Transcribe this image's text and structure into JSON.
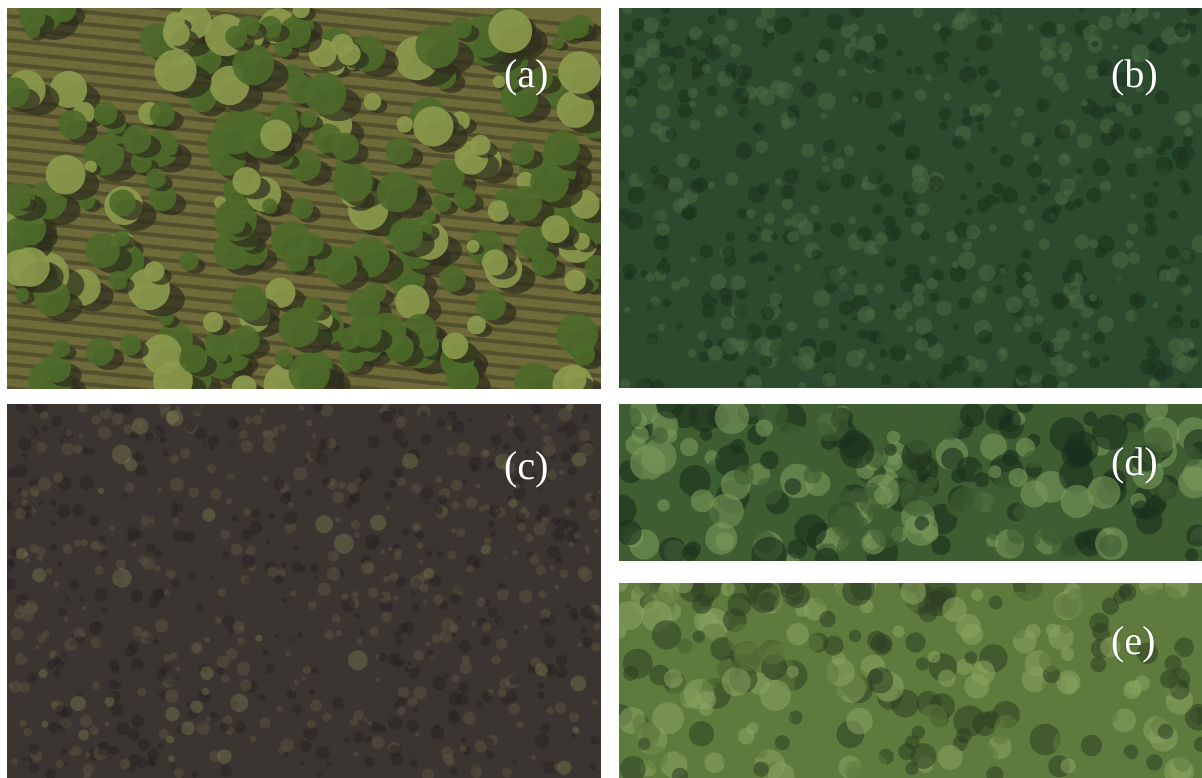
{
  "figure": {
    "panels": [
      {
        "id": "a",
        "label": "(a)",
        "scene": "sparse-tree-rows",
        "colors": {
          "ground": "#6e6a3a",
          "shadow": "#2e2e1c",
          "canopy": "#4e6a2a",
          "highlight": "#8c9a4c"
        }
      },
      {
        "id": "b",
        "label": "(b)",
        "scene": "dense-dark-canopy",
        "colors": {
          "base": "#2c4a2e",
          "dark": "#1c321e",
          "light": "#4a6a44"
        }
      },
      {
        "id": "c",
        "label": "(c)",
        "scene": "dark-mottled-canopy",
        "colors": {
          "base": "#3a3530",
          "dark": "#26221f",
          "light": "#5a5640",
          "accent": "#8a8a56"
        }
      },
      {
        "id": "d",
        "label": "(d)",
        "scene": "mixed-broadleaf-canopy",
        "colors": {
          "base": "#3e5e32",
          "dark": "#1a2e1c",
          "light": "#7a9a5a"
        }
      },
      {
        "id": "e",
        "label": "(e)",
        "scene": "bright-broadleaf-canopy",
        "colors": {
          "base": "#5e7a3c",
          "dark": "#2e3e22",
          "light": "#8aa460"
        }
      }
    ]
  }
}
